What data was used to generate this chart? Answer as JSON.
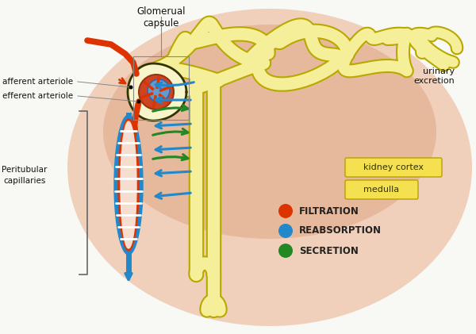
{
  "bg_color": "#f8f8f4",
  "cortex_color_outer": "#f0d0bb",
  "cortex_color_inner": "#e0a888",
  "tubule_fill": "#f5ef9a",
  "tubule_edge": "#b8a800",
  "capillary_blue": "#2288cc",
  "capillary_red": "#dd3300",
  "arrow_blue": "#2288cc",
  "arrow_green": "#228822",
  "arrow_red": "#dd3300",
  "glom_capsule_fill": "#f8f4cc",
  "glom_capsule_edge": "#333300",
  "glom_inner_red": "#cc4422",
  "glom_inner_blue": "#6699cc",
  "label_glomerual": "Glomerual\ncapsule",
  "label_afferent": "afferent arteriole",
  "label_efferent": "efferent arteriole",
  "label_peritubular": "Peritubular\ncapillaries",
  "label_urinary": "urinary\nexcretion",
  "label_cortex": "kidney cortex",
  "label_medulla": "medulla",
  "label_filtration": "FILTRATION",
  "label_reabsorption": "REABSORPTION",
  "label_secretion": "SECRETION",
  "figsize": [
    6.0,
    4.21
  ],
  "dpi": 100
}
